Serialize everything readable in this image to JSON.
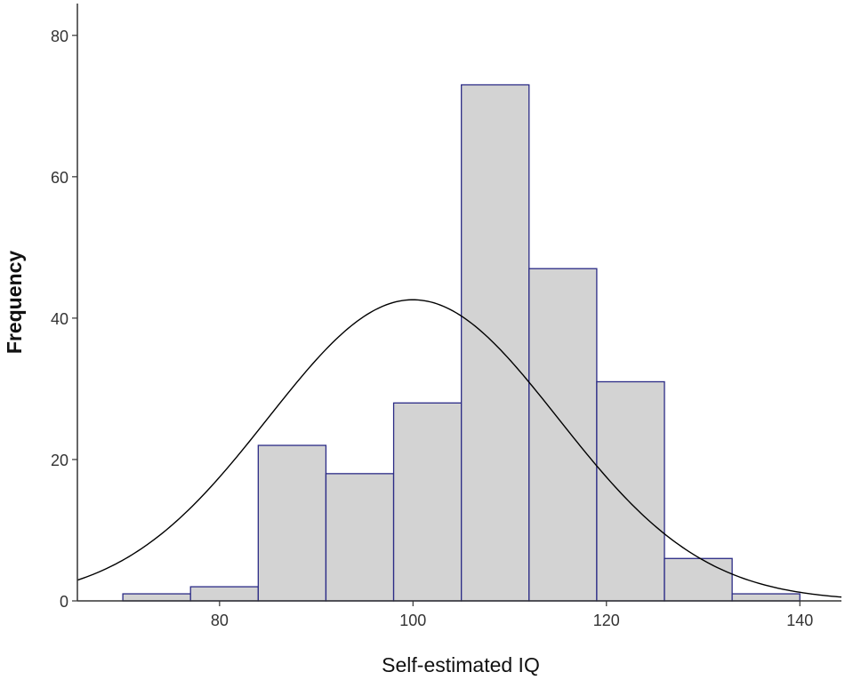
{
  "chart_data": {
    "type": "bar",
    "subtype": "histogram",
    "xlabel": "Self-estimated IQ",
    "ylabel": "Frequency",
    "xlim": [
      65.3,
      144.3
    ],
    "ylim": [
      0,
      84.5
    ],
    "xticks": [
      80,
      100,
      120,
      140
    ],
    "yticks": [
      0,
      20,
      40,
      60,
      80
    ],
    "bins": [
      {
        "start": 70,
        "end": 77,
        "count": 1
      },
      {
        "start": 77,
        "end": 84,
        "count": 2
      },
      {
        "start": 84,
        "end": 91,
        "count": 22
      },
      {
        "start": 91,
        "end": 98,
        "count": 18
      },
      {
        "start": 98,
        "end": 105,
        "count": 28
      },
      {
        "start": 105,
        "end": 112,
        "count": 73
      },
      {
        "start": 112,
        "end": 119,
        "count": 47
      },
      {
        "start": 119,
        "end": 126,
        "count": 31
      },
      {
        "start": 126,
        "end": 133,
        "count": 6
      },
      {
        "start": 133,
        "end": 140,
        "count": 1
      }
    ],
    "normal_curve": {
      "mean": 100,
      "std": 15,
      "peak": 42.6
    },
    "colors": {
      "bar_fill": "#d3d3d3",
      "bar_stroke": "#2b2b86",
      "curve": "#000000",
      "axis": "#333333"
    },
    "grid": false
  }
}
